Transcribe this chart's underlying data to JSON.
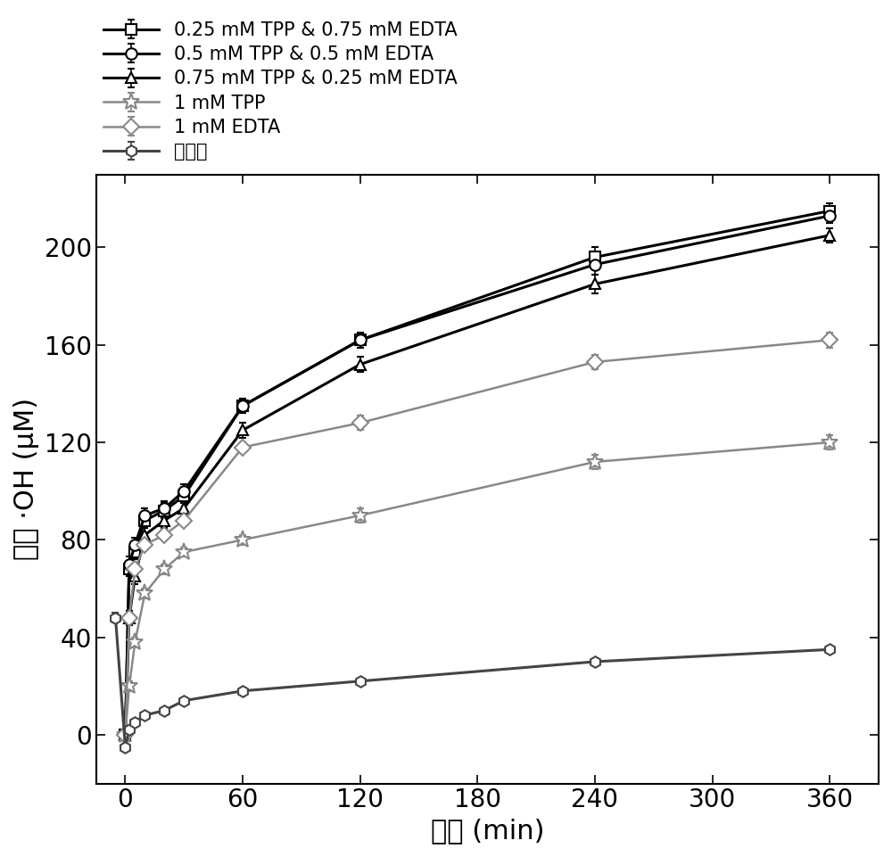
{
  "series": [
    {
      "label": "0.25 mM TPP & 0.75 mM EDTA",
      "color": "#000000",
      "marker": "s",
      "markersize": 9,
      "linewidth": 2.2,
      "markerfacecolor": "white",
      "x": [
        0,
        2,
        5,
        10,
        20,
        30,
        60,
        120,
        240,
        360
      ],
      "y": [
        0,
        68,
        75,
        88,
        92,
        98,
        135,
        162,
        196,
        215
      ],
      "yerr": [
        2,
        3,
        3,
        3,
        3,
        3,
        3,
        3,
        4,
        3
      ]
    },
    {
      "label": "0.5 mM TPP & 0.5 mM EDTA",
      "color": "#000000",
      "marker": "o",
      "markersize": 9,
      "linewidth": 2.2,
      "markerfacecolor": "white",
      "x": [
        0,
        2,
        5,
        10,
        20,
        30,
        60,
        120,
        240,
        360
      ],
      "y": [
        0,
        70,
        78,
        90,
        93,
        100,
        135,
        162,
        193,
        213
      ],
      "yerr": [
        2,
        3,
        3,
        3,
        3,
        3,
        3,
        3,
        4,
        3
      ]
    },
    {
      "label": "0.75 mM TPP & 0.25 mM EDTA",
      "color": "#000000",
      "marker": "^",
      "markersize": 9,
      "linewidth": 2.2,
      "markerfacecolor": "white",
      "x": [
        0,
        2,
        5,
        10,
        20,
        30,
        60,
        120,
        240,
        360
      ],
      "y": [
        0,
        48,
        65,
        82,
        88,
        93,
        125,
        152,
        185,
        205
      ],
      "yerr": [
        2,
        3,
        3,
        3,
        3,
        3,
        3,
        3,
        4,
        3
      ]
    },
    {
      "label": "1 mM TPP",
      "color": "#888888",
      "marker": "*",
      "markersize": 14,
      "linewidth": 1.8,
      "markerfacecolor": "white",
      "x": [
        0,
        2,
        5,
        10,
        20,
        30,
        60,
        120,
        240,
        360
      ],
      "y": [
        0,
        20,
        38,
        58,
        68,
        75,
        80,
        90,
        112,
        120
      ],
      "yerr": [
        2,
        2,
        2,
        2,
        2,
        2,
        2,
        3,
        3,
        3
      ]
    },
    {
      "label": "1 mM EDTA",
      "color": "#888888",
      "marker": "D",
      "markersize": 9,
      "linewidth": 1.8,
      "markerfacecolor": "white",
      "x": [
        0,
        2,
        5,
        10,
        20,
        30,
        60,
        120,
        240,
        360
      ],
      "y": [
        0,
        48,
        68,
        78,
        82,
        88,
        118,
        128,
        153,
        162
      ],
      "yerr": [
        2,
        2,
        2,
        2,
        2,
        2,
        2,
        3,
        3,
        3
      ]
    },
    {
      "label": "无配体",
      "color": "#444444",
      "marker": "h",
      "markersize": 9,
      "linewidth": 2.2,
      "markerfacecolor": "white",
      "x": [
        -5,
        0,
        2,
        5,
        10,
        20,
        30,
        60,
        120,
        240,
        360
      ],
      "y": [
        48,
        -5,
        2,
        5,
        8,
        10,
        14,
        18,
        22,
        30,
        35
      ],
      "yerr": [
        2,
        1,
        1,
        1,
        1,
        1,
        1,
        1,
        1,
        1,
        1
      ]
    }
  ],
  "xlabel": "时间 (min)",
  "ylabel": "累积 ·OH (μM)",
  "xlim": [
    -15,
    385
  ],
  "ylim": [
    -20,
    230
  ],
  "xticks": [
    0,
    60,
    120,
    180,
    240,
    300,
    360
  ],
  "yticks": [
    0,
    40,
    80,
    120,
    160,
    200
  ],
  "background_color": "#ffffff",
  "xlabel_fontsize": 22,
  "ylabel_fontsize": 22,
  "tick_fontsize": 20,
  "legend_fontsize": 15
}
